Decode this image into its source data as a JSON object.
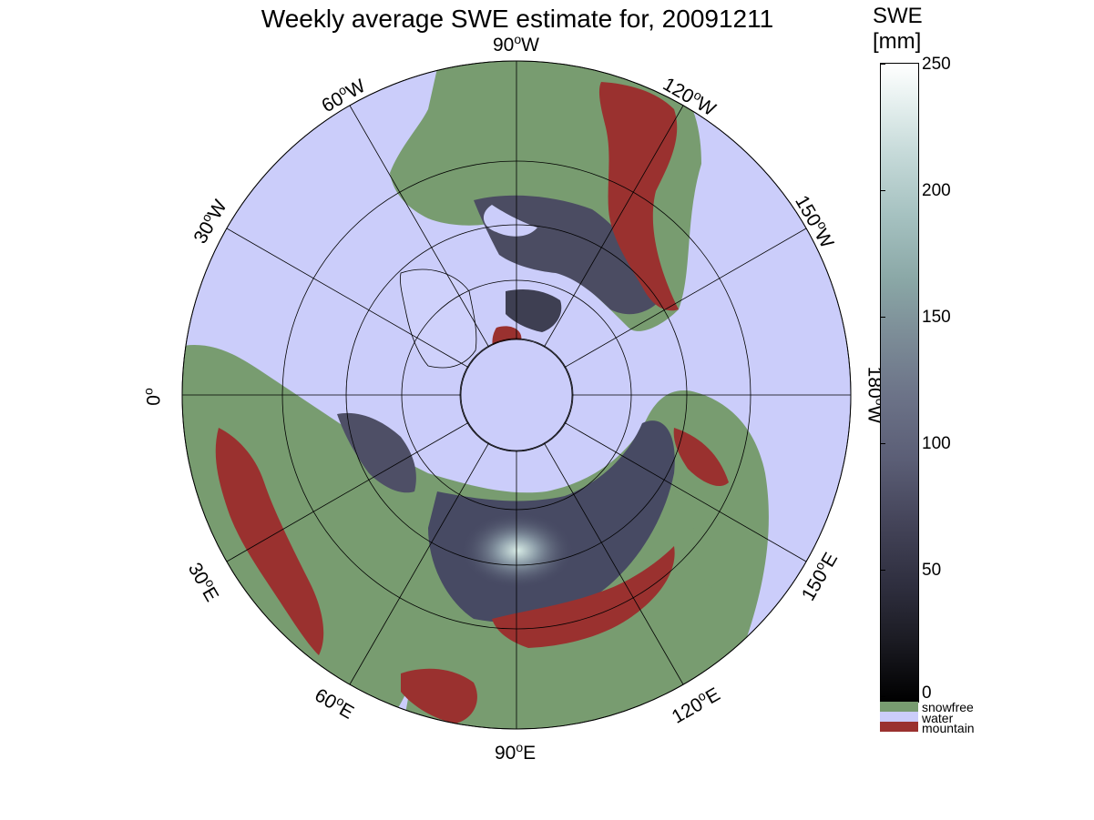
{
  "title": "Weekly average SWE estimate for, 20091211",
  "colorbar": {
    "title_line1": "SWE",
    "title_line2": "[mm]",
    "ticks": [
      "250",
      "200",
      "150",
      "100",
      "50",
      "0"
    ]
  },
  "categories": [
    {
      "label": "snowfree",
      "color": "#789c70"
    },
    {
      "label": "water",
      "color": "#cbcdfa"
    },
    {
      "label": "mountain",
      "color": "#9a312f"
    }
  ],
  "meridian_labels": {
    "m90w": {
      "value": "90",
      "unit": "o",
      "hemi": "W"
    },
    "m120w": {
      "value": "120",
      "unit": "o",
      "hemi": "W"
    },
    "m150w": {
      "value": "150",
      "unit": "o",
      "hemi": "W"
    },
    "m180w": {
      "value": "180",
      "unit": "o",
      "hemi": "W"
    },
    "m150e": {
      "value": "150",
      "unit": "o",
      "hemi": "E"
    },
    "m120e": {
      "value": "120",
      "unit": "o",
      "hemi": "E"
    },
    "m90e": {
      "value": "90",
      "unit": "o",
      "hemi": "E"
    },
    "m60e": {
      "value": "60",
      "unit": "o",
      "hemi": "E"
    },
    "m30e": {
      "value": "30",
      "unit": "o",
      "hemi": "E"
    },
    "m0": {
      "value": "0",
      "unit": "o",
      "hemi": ""
    },
    "m30w": {
      "value": "30",
      "unit": "o",
      "hemi": "W"
    },
    "m60w": {
      "value": "60",
      "unit": "o",
      "hemi": "W"
    }
  },
  "colors": {
    "water": "#cbcdfa",
    "snowfree": "#789c70",
    "mountain": "#9a312f",
    "snow_dark": "#2c2c3c",
    "snow_mid": "#5a5c74",
    "snow_light": "#a8c4bf",
    "ice": "#d0d2fb"
  }
}
